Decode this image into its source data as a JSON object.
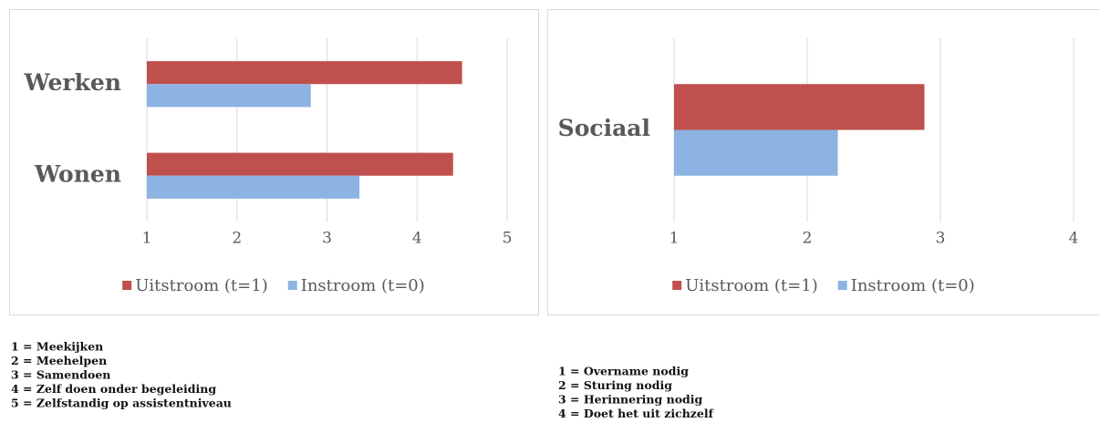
{
  "chart_data": [
    {
      "type": "bar",
      "orientation": "horizontal",
      "categories": [
        "Werken",
        "Wonen"
      ],
      "series": [
        {
          "name": "Uitstroom (t=1)",
          "color": "#c0504d",
          "values": [
            4.5,
            4.4
          ]
        },
        {
          "name": "Instroom (t=0)",
          "color": "#8db3e2",
          "values": [
            2.82,
            3.36
          ]
        }
      ],
      "xlim": [
        1,
        5
      ],
      "xticks": [
        1,
        2,
        3,
        4,
        5
      ],
      "grid": true,
      "legend": "bottom",
      "notes": [
        "1 = Meekijken",
        "2 = Meehelpen",
        "3 = Samendoen",
        "4 = Zelf doen onder begeleiding",
        "5 = Zelfstandig op assistentniveau"
      ]
    },
    {
      "type": "bar",
      "orientation": "horizontal",
      "categories": [
        "Sociaal"
      ],
      "series": [
        {
          "name": "Uitstroom (t=1)",
          "color": "#c0504d",
          "values": [
            2.88
          ]
        },
        {
          "name": "Instroom (t=0)",
          "color": "#8db3e2",
          "values": [
            2.23
          ]
        }
      ],
      "xlim": [
        1,
        4
      ],
      "xticks": [
        1,
        2,
        3,
        4
      ],
      "grid": true,
      "legend": "bottom",
      "notes": [
        "1 = Overname nodig",
        "2 = Sturing nodig",
        "3 = Herinnering nodig",
        "4 = Doet het uit zichzelf"
      ]
    }
  ]
}
